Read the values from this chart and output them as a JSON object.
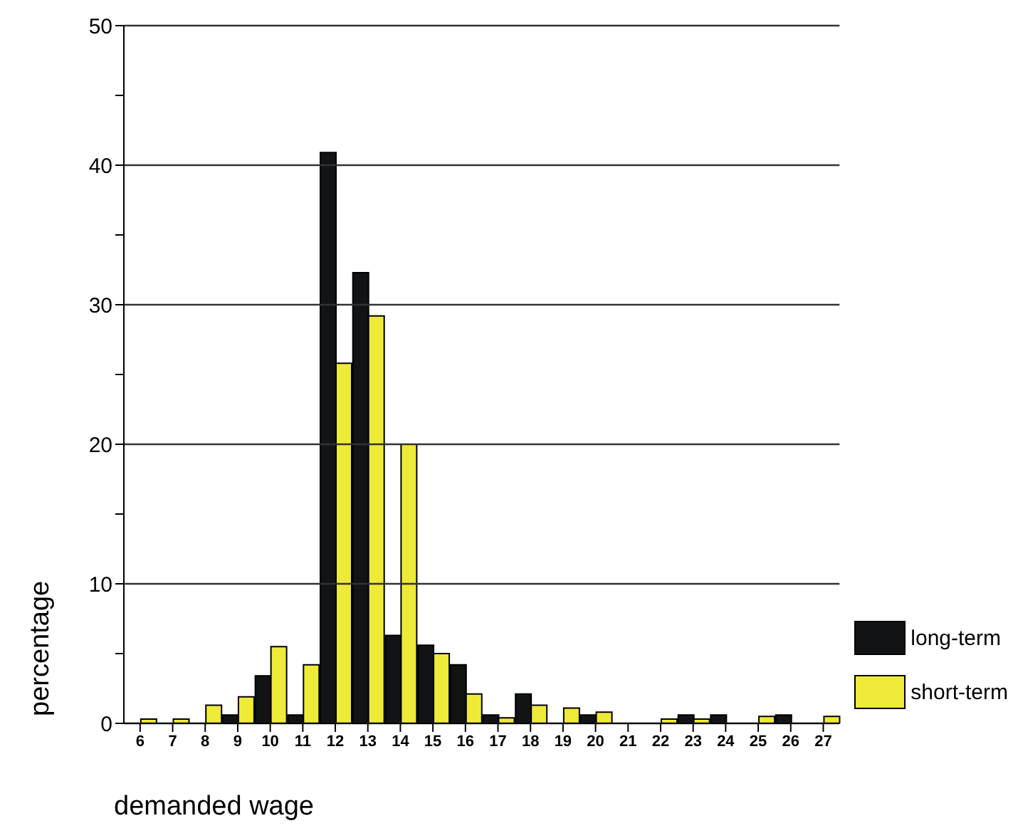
{
  "chart_data": {
    "type": "bar",
    "xlabel": "demanded wage",
    "ylabel": "percentage",
    "categories": [
      "6",
      "7",
      "8",
      "9",
      "10",
      "11",
      "12",
      "13",
      "14",
      "15",
      "16",
      "17",
      "18",
      "19",
      "20",
      "21",
      "22",
      "23",
      "24",
      "25",
      "26",
      "27"
    ],
    "series": [
      {
        "name": "long-term",
        "color": "#111314",
        "values": [
          0,
          0,
          0,
          0.6,
          3.4,
          0.6,
          40.9,
          32.3,
          6.3,
          5.6,
          4.2,
          0.6,
          2.1,
          0,
          0.6,
          0,
          0,
          0.6,
          0.6,
          0,
          0.6,
          0
        ]
      },
      {
        "name": "short-term",
        "color": "#eeea38",
        "values": [
          0.3,
          0.3,
          1.3,
          1.9,
          5.5,
          4.2,
          25.8,
          29.2,
          20,
          5,
          2.1,
          0.4,
          1.3,
          1.1,
          0.8,
          0,
          0.3,
          0.3,
          0,
          0.5,
          0,
          0.5
        ]
      }
    ],
    "ylim": [
      0,
      50
    ],
    "yticks": [
      0,
      {
        "value": 5,
        "label": null
      },
      10,
      {
        "value": 15,
        "label": null
      },
      20,
      {
        "value": 25,
        "label": null
      },
      30,
      {
        "value": 35,
        "label": null
      },
      40,
      {
        "value": 45,
        "label": null
      },
      50
    ],
    "grid": "y",
    "legend": "bottom right"
  }
}
